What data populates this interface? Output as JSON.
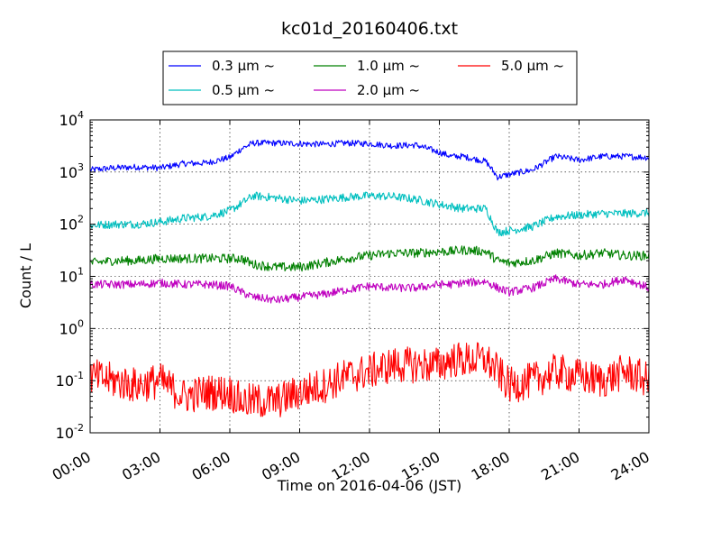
{
  "chart_data": {
    "type": "line",
    "title": "kc01d_20160406.txt",
    "xlabel": "Time on 2016-04-06 (JST)",
    "ylabel": "Count / L",
    "yscale": "log",
    "ylim": [
      0.01,
      10000
    ],
    "xlim": [
      "00:00",
      "24:00"
    ],
    "grid": true,
    "legend_position": "top-center",
    "x_ticks": [
      "00:00",
      "03:00",
      "06:00",
      "09:00",
      "12:00",
      "15:00",
      "18:00",
      "21:00",
      "24:00"
    ],
    "y_ticks": [
      {
        "base": "10",
        "exp": "-2"
      },
      {
        "base": "10",
        "exp": "-1"
      },
      {
        "base": "10",
        "exp": "0"
      },
      {
        "base": "10",
        "exp": "1"
      },
      {
        "base": "10",
        "exp": "2"
      },
      {
        "base": "10",
        "exp": "3"
      },
      {
        "base": "10",
        "exp": "4"
      }
    ],
    "x_hours": [
      0,
      1,
      2,
      3,
      4,
      5,
      6,
      6.5,
      7,
      8,
      9,
      10,
      11,
      12,
      13,
      14,
      15,
      15.5,
      16,
      17,
      17.5,
      18,
      19,
      20,
      21,
      22,
      23,
      24
    ],
    "series": [
      {
        "name": "0.3 μm ~",
        "color": "#0000ff",
        "noise": 0.06,
        "values": [
          1100,
          1200,
          1250,
          1200,
          1450,
          1500,
          1900,
          2800,
          3600,
          3600,
          3500,
          3400,
          3600,
          3500,
          3200,
          3300,
          2400,
          2000,
          2000,
          1600,
          800,
          900,
          1100,
          2000,
          1700,
          2000,
          2000,
          1900
        ]
      },
      {
        "name": "0.5 μm ~",
        "color": "#00bfbf",
        "noise": 0.08,
        "values": [
          95,
          100,
          100,
          110,
          130,
          140,
          180,
          250,
          350,
          320,
          280,
          300,
          330,
          350,
          340,
          300,
          240,
          220,
          200,
          200,
          70,
          75,
          90,
          140,
          150,
          160,
          160,
          165
        ]
      },
      {
        "name": "1.0 μm ~",
        "color": "#008000",
        "noise": 0.09,
        "values": [
          18,
          20,
          20,
          22,
          22,
          22,
          22,
          22,
          17,
          15,
          15,
          18,
          22,
          25,
          28,
          28,
          30,
          30,
          32,
          30,
          20,
          18,
          20,
          28,
          25,
          28,
          25,
          25
        ]
      },
      {
        "name": "2.0 μm ~",
        "color": "#bf00bf",
        "noise": 0.08,
        "values": [
          7,
          7,
          7,
          7.5,
          7,
          7,
          6.5,
          5,
          4,
          3.5,
          4,
          4.5,
          5.5,
          6.5,
          6,
          6,
          7,
          7,
          7.5,
          8,
          6,
          5,
          6,
          9,
          7,
          7,
          9,
          6
        ]
      },
      {
        "name": "5.0 μm ~",
        "color": "#ff0000",
        "noise": 0.35,
        "values": [
          0.12,
          0.1,
          0.08,
          0.1,
          0.05,
          0.06,
          0.06,
          0.04,
          0.04,
          0.04,
          0.06,
          0.08,
          0.12,
          0.15,
          0.2,
          0.2,
          0.2,
          0.25,
          0.25,
          0.25,
          0.15,
          0.08,
          0.1,
          0.15,
          0.12,
          0.1,
          0.15,
          0.1
        ]
      }
    ]
  }
}
